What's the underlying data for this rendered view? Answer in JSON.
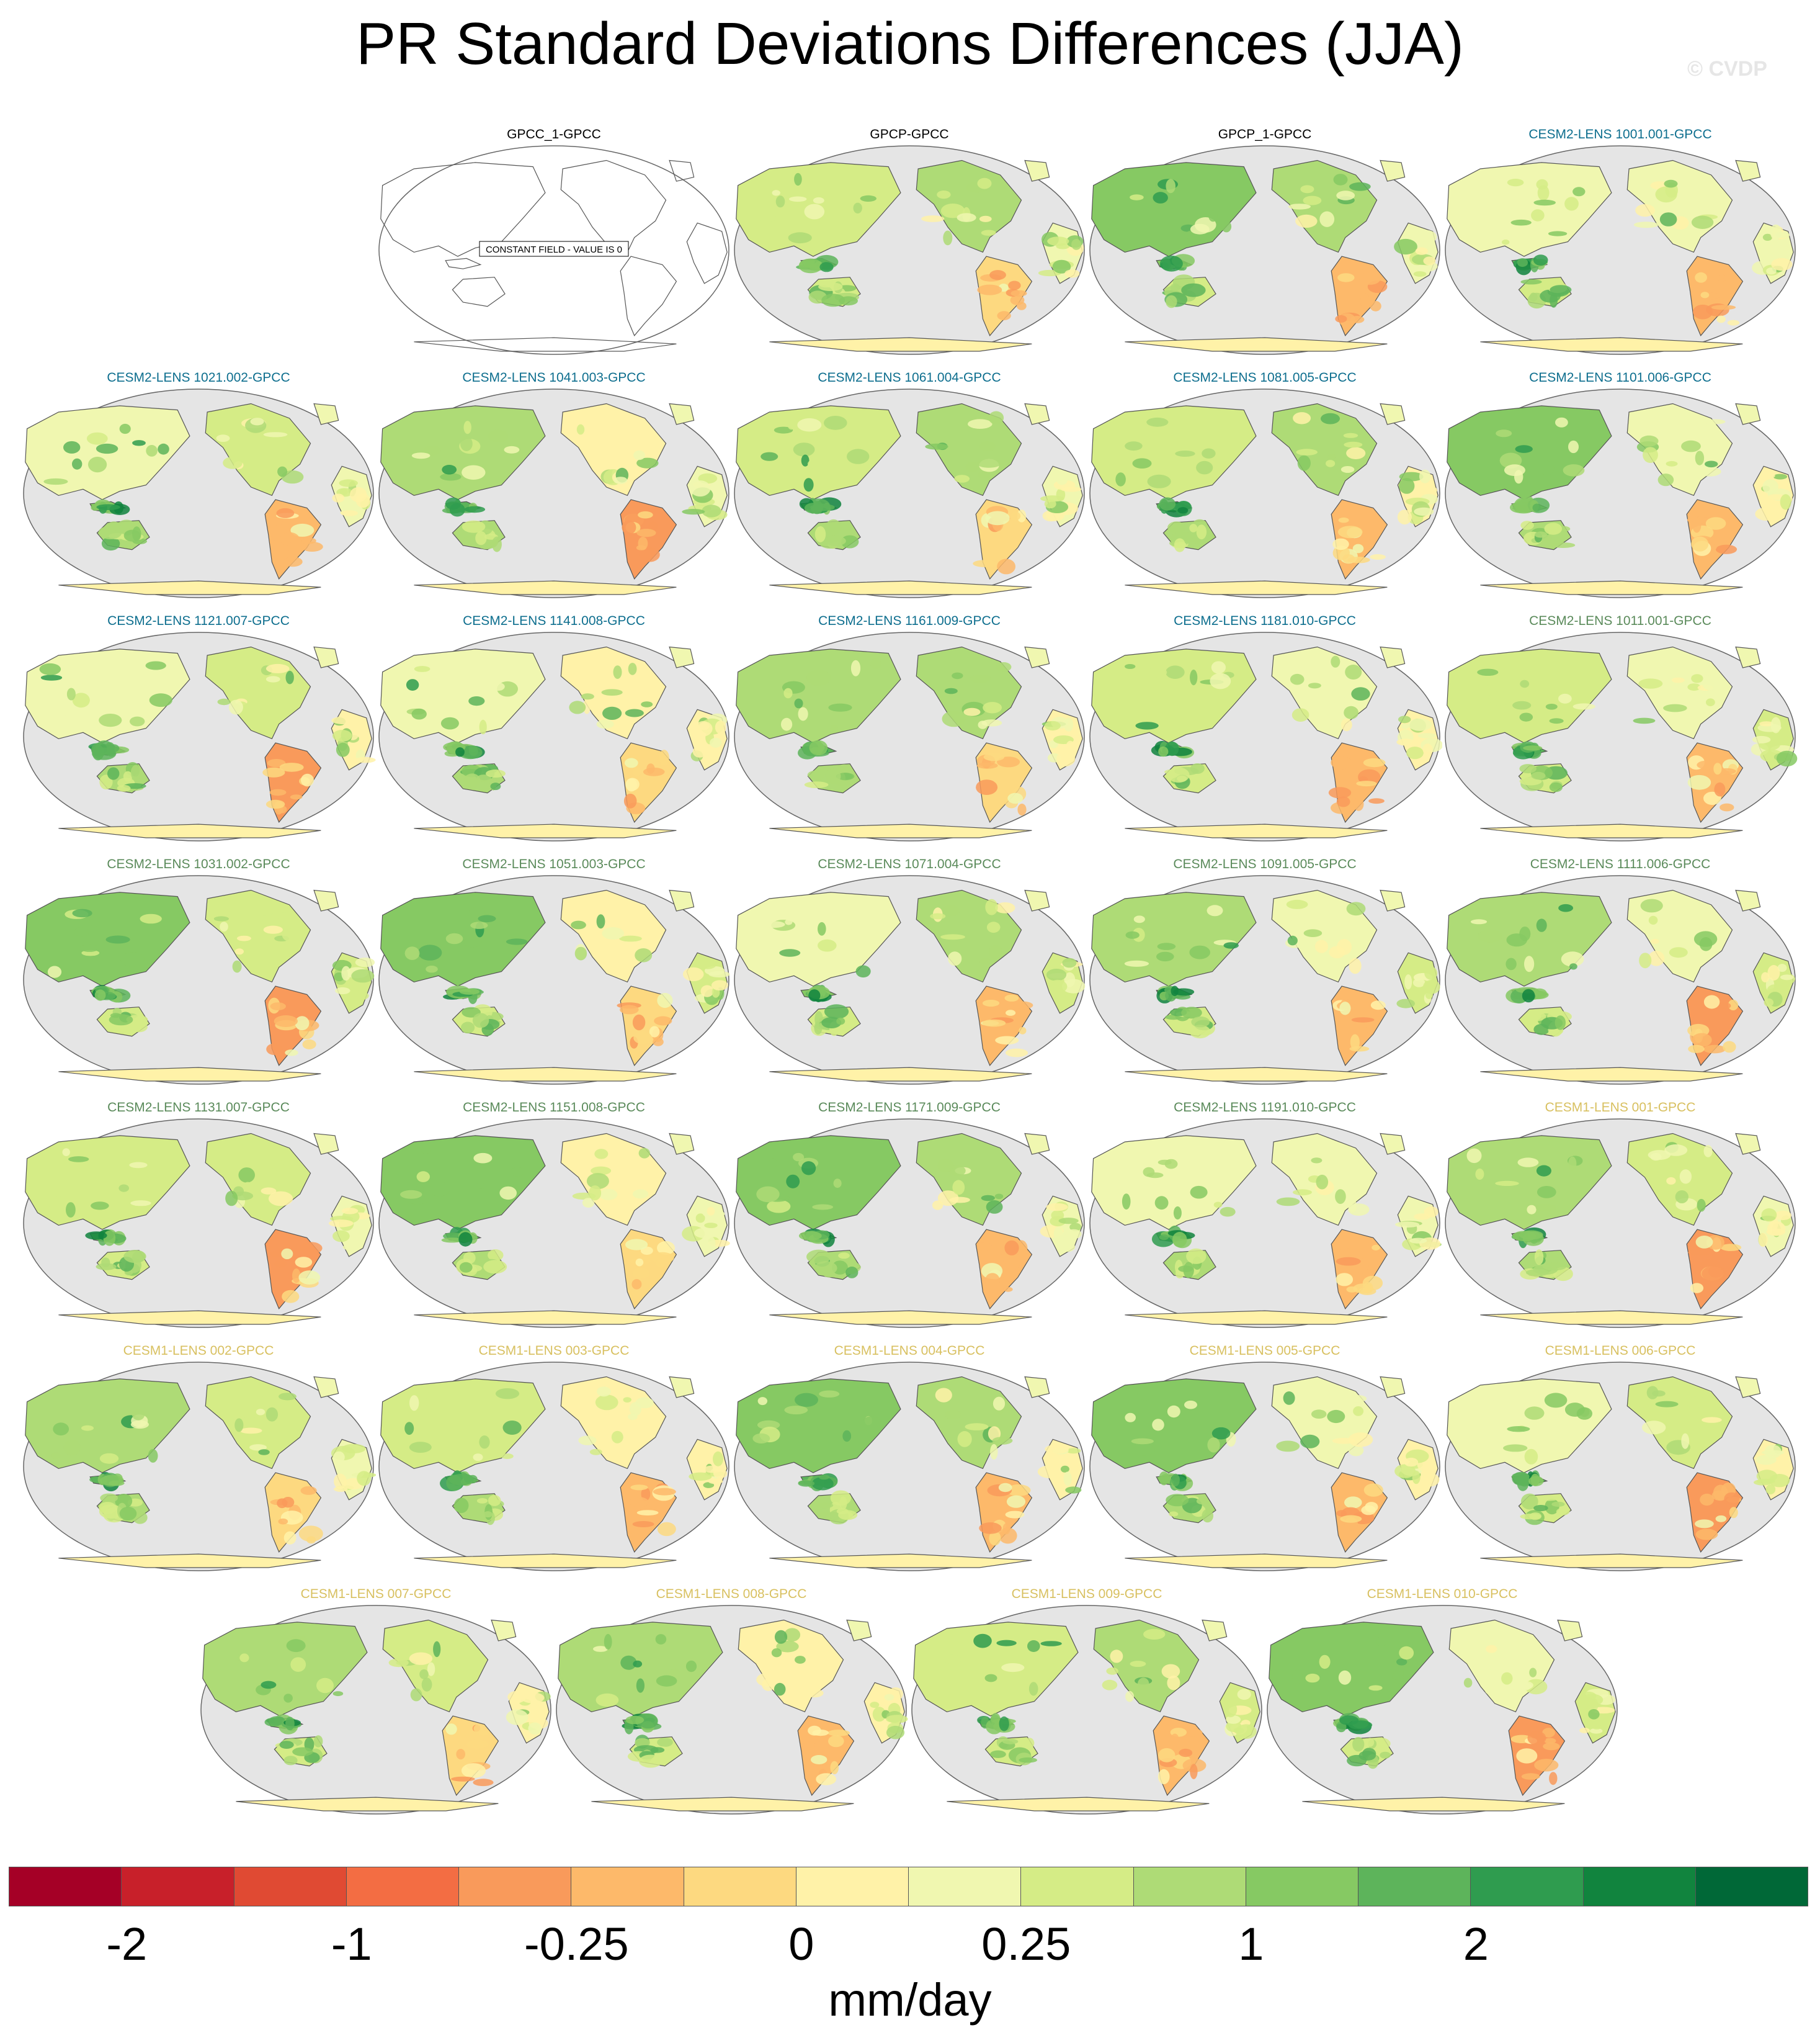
{
  "page_title": "PR Standard Deviations Differences (JJA)",
  "watermark": "© CVDP",
  "colors": {
    "cesm2_group_a": "#0d6e8e",
    "cesm2_group_b": "#5a8a5a",
    "cesm1": "#d8c060",
    "reference": "#000000",
    "ocean": "#e5e5e5"
  },
  "chart_data": {
    "type": "heatmap",
    "title": "PR Standard Deviations Differences (JJA)",
    "season": "JJA",
    "variable": "PR",
    "units": "mm/day",
    "projection": "Robinson",
    "colorbar": {
      "colors": [
        "#a50026",
        "#c8202a",
        "#e04a33",
        "#f36d43",
        "#f99a5b",
        "#fdb96a",
        "#fdd980",
        "#fff2a8",
        "#f0f7b0",
        "#d5ec86",
        "#aedb76",
        "#86c963",
        "#5db45b",
        "#2f9c4f",
        "#11843e",
        "#006837"
      ],
      "tick_labels": [
        "-2",
        "-1",
        "-0.25",
        "0",
        "0.25",
        "1",
        "2"
      ],
      "tick_boundaries": [
        2,
        4,
        6,
        8,
        10,
        12,
        14
      ]
    },
    "panels": [
      {
        "title": "GPCC_1-GPCC",
        "group": "reference",
        "note": "CONSTANT FIELD - VALUE IS 0"
      },
      {
        "title": "GPCP-GPCC",
        "group": "reference"
      },
      {
        "title": "GPCP_1-GPCC",
        "group": "reference"
      },
      {
        "title": "CESM2-LENS 1001.001-GPCC",
        "group": "cesm2_group_a"
      },
      {
        "title": "CESM2-LENS 1021.002-GPCC",
        "group": "cesm2_group_a"
      },
      {
        "title": "CESM2-LENS 1041.003-GPCC",
        "group": "cesm2_group_a"
      },
      {
        "title": "CESM2-LENS 1061.004-GPCC",
        "group": "cesm2_group_a"
      },
      {
        "title": "CESM2-LENS 1081.005-GPCC",
        "group": "cesm2_group_a"
      },
      {
        "title": "CESM2-LENS 1101.006-GPCC",
        "group": "cesm2_group_a"
      },
      {
        "title": "CESM2-LENS 1121.007-GPCC",
        "group": "cesm2_group_a"
      },
      {
        "title": "CESM2-LENS 1141.008-GPCC",
        "group": "cesm2_group_a"
      },
      {
        "title": "CESM2-LENS 1161.009-GPCC",
        "group": "cesm2_group_a"
      },
      {
        "title": "CESM2-LENS 1181.010-GPCC",
        "group": "cesm2_group_a"
      },
      {
        "title": "CESM2-LENS 1011.001-GPCC",
        "group": "cesm2_group_b"
      },
      {
        "title": "CESM2-LENS 1031.002-GPCC",
        "group": "cesm2_group_b"
      },
      {
        "title": "CESM2-LENS 1051.003-GPCC",
        "group": "cesm2_group_b"
      },
      {
        "title": "CESM2-LENS 1071.004-GPCC",
        "group": "cesm2_group_b"
      },
      {
        "title": "CESM2-LENS 1091.005-GPCC",
        "group": "cesm2_group_b"
      },
      {
        "title": "CESM2-LENS 1111.006-GPCC",
        "group": "cesm2_group_b"
      },
      {
        "title": "CESM2-LENS 1131.007-GPCC",
        "group": "cesm2_group_b"
      },
      {
        "title": "CESM2-LENS 1151.008-GPCC",
        "group": "cesm2_group_b"
      },
      {
        "title": "CESM2-LENS 1171.009-GPCC",
        "group": "cesm2_group_b"
      },
      {
        "title": "CESM2-LENS 1191.010-GPCC",
        "group": "cesm2_group_b"
      },
      {
        "title": "CESM1-LENS 001-GPCC",
        "group": "cesm1"
      },
      {
        "title": "CESM1-LENS 002-GPCC",
        "group": "cesm1"
      },
      {
        "title": "CESM1-LENS 003-GPCC",
        "group": "cesm1"
      },
      {
        "title": "CESM1-LENS 004-GPCC",
        "group": "cesm1"
      },
      {
        "title": "CESM1-LENS 005-GPCC",
        "group": "cesm1"
      },
      {
        "title": "CESM1-LENS 006-GPCC",
        "group": "cesm1"
      },
      {
        "title": "CESM1-LENS 007-GPCC",
        "group": "cesm1"
      },
      {
        "title": "CESM1-LENS 008-GPCC",
        "group": "cesm1"
      },
      {
        "title": "CESM1-LENS 009-GPCC",
        "group": "cesm1"
      },
      {
        "title": "CESM1-LENS 010-GPCC",
        "group": "cesm1"
      }
    ]
  }
}
